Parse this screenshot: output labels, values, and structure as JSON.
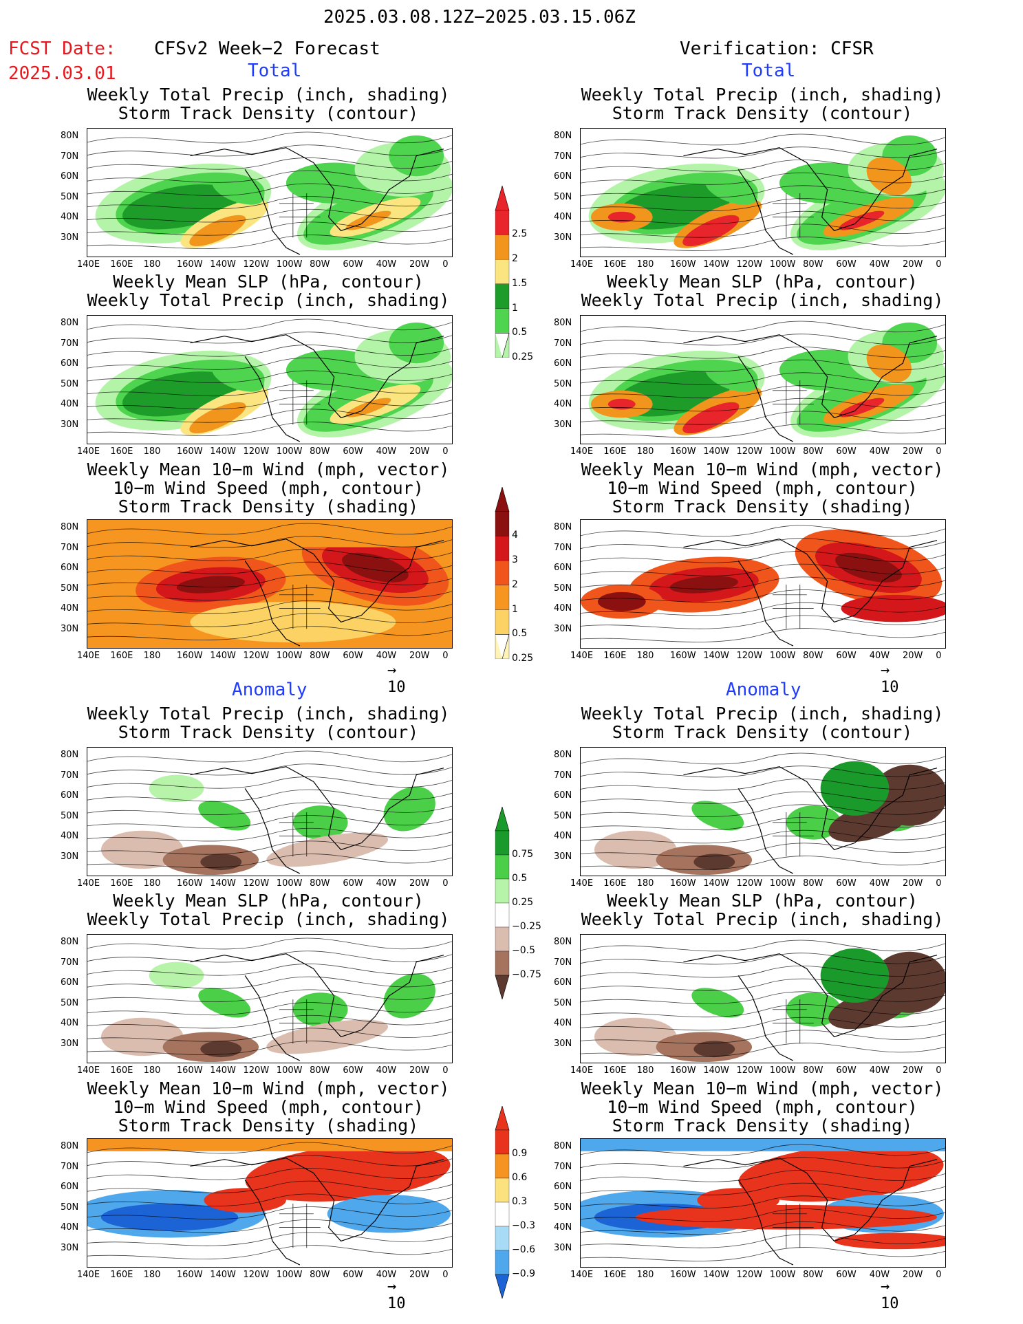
{
  "header": {
    "date_range": "2025.03.08.12Z−2025.03.15.06Z",
    "fcst_label": "FCST Date:",
    "fcst_date": "2025.03.01",
    "left_title": "CFSv2 Week−2 Forecast",
    "right_title": "Verification: CFSR",
    "total_label": "Total",
    "anomaly_label": "Anomaly"
  },
  "panel_titles": {
    "precip": [
      "Weekly Total Precip (inch, shading)",
      "Storm Track Density (contour)"
    ],
    "slp": [
      "Weekly Mean SLP (hPa, contour)",
      "Weekly Total Precip (inch, shading)"
    ],
    "wind": [
      "Weekly Mean 10−m Wind (mph, vector)",
      "10−m Wind Speed (mph, contour)",
      "Storm Track Density (shading)"
    ]
  },
  "axes": {
    "lat": [
      "80N",
      "70N",
      "60N",
      "50N",
      "40N",
      "30N"
    ],
    "lon": [
      "140E",
      "160E",
      "180",
      "160W",
      "140W",
      "120W",
      "100W",
      "80W",
      "60W",
      "40W",
      "20W",
      "0"
    ]
  },
  "colorbars": {
    "precip_total": {
      "labels": [
        "2.5",
        "2",
        "1.5",
        "1",
        "0.5",
        "0.25"
      ],
      "colors": [
        "#e8252b",
        "#f2951d",
        "#fbe580",
        "#1d9c2a",
        "#4fd44f",
        "#b4f4a8"
      ]
    },
    "wind_total": {
      "labels": [
        "4",
        "3",
        "2",
        "1",
        "0.5",
        "0.25"
      ],
      "colors": [
        "#8b1010",
        "#d4171a",
        "#f0561c",
        "#f6951f",
        "#fbd263",
        "#fff3b5"
      ]
    },
    "precip_anom": {
      "labels": [
        "0.75",
        "0.5",
        "0.25",
        "−0.25",
        "−0.5",
        "−0.75"
      ],
      "colors": [
        "#1a9a2a",
        "#4ccf48",
        "#b7f4a9",
        "#ffffff",
        "#dbbdb0",
        "#a5735e",
        "#5d3a30"
      ]
    },
    "wind_anom": {
      "labels": [
        "0.9",
        "0.6",
        "0.3",
        "−0.3",
        "−0.6",
        "−0.9"
      ],
      "colors": [
        "#e8341d",
        "#f59421",
        "#fce27f",
        "#ffffff",
        "#a8dcf6",
        "#4fa7ec",
        "#1c63d6"
      ]
    }
  },
  "vector_ref": "10",
  "colors": {
    "green_dark": "#1d9c2a",
    "green": "#4fd44f",
    "green_light": "#b4f4a8",
    "orange": "#f2951d",
    "red": "#e8252b",
    "brown": "#5d3a30"
  }
}
